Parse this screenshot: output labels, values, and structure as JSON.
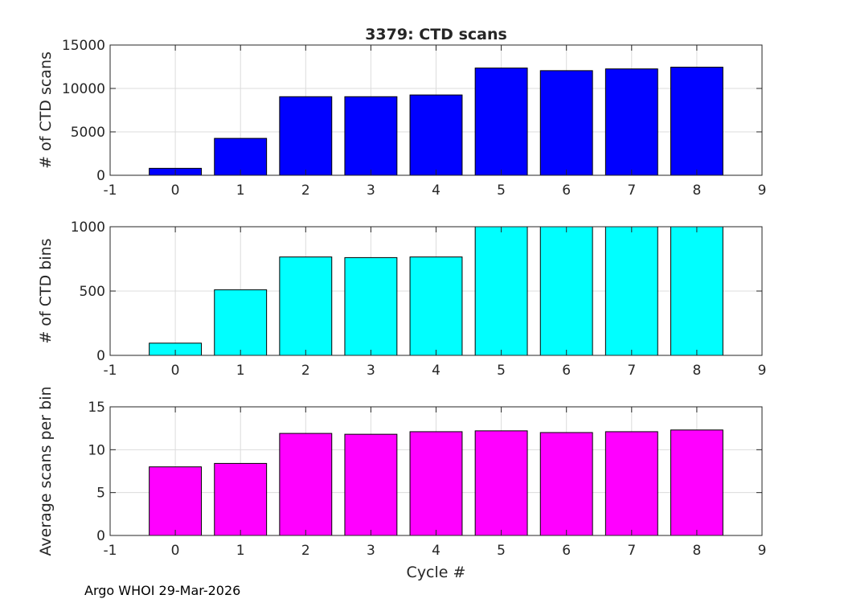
{
  "figure_title": "3379: CTD scans",
  "footer_note": "Argo WHOI 29-Mar-2026",
  "chart_data": [
    {
      "type": "bar",
      "title": "3379: CTD scans",
      "xlabel": "",
      "ylabel": "# of CTD scans",
      "x": [
        0,
        1,
        2,
        3,
        4,
        5,
        6,
        7,
        8
      ],
      "values": [
        800,
        4250,
        9050,
        9050,
        9250,
        12350,
        12050,
        12250,
        12450
      ],
      "xlim": [
        -1,
        9
      ],
      "ylim": [
        0,
        15000
      ],
      "xticks": [
        "-1",
        "0",
        "1",
        "2",
        "3",
        "4",
        "5",
        "6",
        "7",
        "8",
        "9"
      ],
      "yticks": [
        "0",
        "5000",
        "10000",
        "15000"
      ],
      "ytick_values": [
        0,
        5000,
        10000,
        15000
      ],
      "color": "#0000ff",
      "grid": true
    },
    {
      "type": "bar",
      "title": "",
      "xlabel": "",
      "ylabel": "# of CTD bins",
      "x": [
        0,
        1,
        2,
        3,
        4,
        5,
        6,
        7,
        8
      ],
      "values": [
        95,
        510,
        765,
        760,
        765,
        1000,
        1000,
        1000,
        1000
      ],
      "xlim": [
        -1,
        9
      ],
      "ylim": [
        0,
        1000
      ],
      "xticks": [
        "-1",
        "0",
        "1",
        "2",
        "3",
        "4",
        "5",
        "6",
        "7",
        "8",
        "9"
      ],
      "yticks": [
        "0",
        "500",
        "1000"
      ],
      "ytick_values": [
        0,
        500,
        1000
      ],
      "color": "#00ffff",
      "grid": true
    },
    {
      "type": "bar",
      "title": "",
      "xlabel": "Cycle #",
      "ylabel": "Average scans per bin",
      "x": [
        0,
        1,
        2,
        3,
        4,
        5,
        6,
        7,
        8
      ],
      "values": [
        8.0,
        8.4,
        11.9,
        11.8,
        12.1,
        12.2,
        12.0,
        12.1,
        12.3
      ],
      "xlim": [
        -1,
        9
      ],
      "ylim": [
        0,
        15
      ],
      "xticks": [
        "-1",
        "0",
        "1",
        "2",
        "3",
        "4",
        "5",
        "6",
        "7",
        "8",
        "9"
      ],
      "yticks": [
        "0",
        "5",
        "10",
        "15"
      ],
      "ytick_values": [
        0,
        5,
        10,
        15
      ],
      "color": "#ff00ff",
      "grid": true
    }
  ]
}
